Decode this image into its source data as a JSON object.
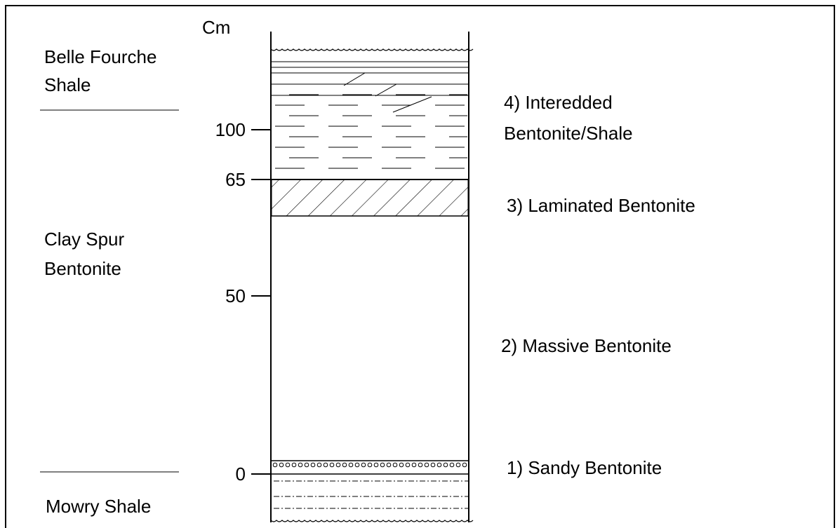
{
  "scale": {
    "unit": "Cm",
    "ticks": [
      100,
      65,
      50,
      0
    ]
  },
  "formations": [
    {
      "lines": [
        "Belle Fourche",
        "Shale"
      ]
    },
    {
      "lines": [
        "Clay Spur",
        "Bentonite"
      ]
    },
    {
      "lines": [
        "Mowry Shale"
      ]
    }
  ],
  "units": [
    {
      "lines": [
        "4) Interedded",
        "Bentonite/Shale"
      ]
    },
    {
      "lines": [
        "3) Laminated Bentonite"
      ]
    },
    {
      "lines": [
        "2) Massive Bentonite"
      ]
    },
    {
      "lines": [
        "1) Sandy Bentonite"
      ]
    }
  ]
}
